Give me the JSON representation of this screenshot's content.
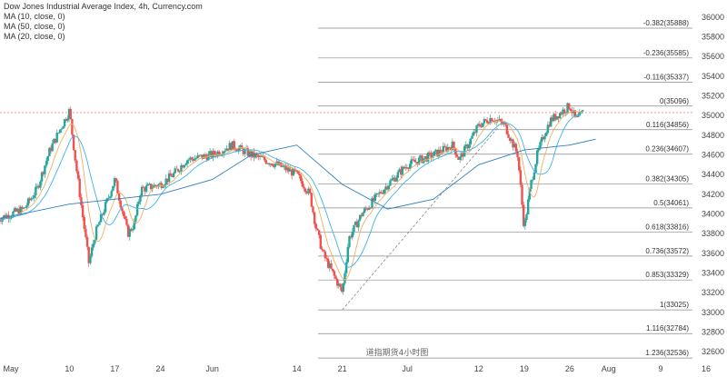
{
  "legend": {
    "title": "Dow Jones Industrial Average Index, 4h, Currency.com",
    "ma10": "MA (10, close, 0)",
    "ma50": "MA (50, close, 0)",
    "ma20": "MA (20, close, 0)"
  },
  "watermark": "道指期货4小时图",
  "colors": {
    "up": "#26a69a",
    "down": "#ef5350",
    "ma10": "#f0b060",
    "ma20": "#3cb4e6",
    "ma50": "#2f7fc0",
    "fib": "#888888",
    "trend": "#888888",
    "priceline": "#ef5350"
  },
  "chart_data": {
    "type": "candlestick",
    "ylim": [
      32500,
      36100
    ],
    "y_ticks": [
      32600,
      32800,
      33000,
      33200,
      33400,
      33600,
      33800,
      34000,
      34200,
      34400,
      34600,
      34800,
      35000,
      35200,
      35400,
      35600,
      35800,
      36000
    ],
    "x_ticks": [
      "May",
      "10",
      "17",
      "24",
      "Jun",
      "14",
      "21",
      "Jul",
      "12",
      "19",
      "26",
      "Aug",
      "9",
      "16"
    ],
    "current_price": 35030,
    "fibonacci": [
      {
        "label": "-0.382(35888)",
        "value": 35888
      },
      {
        "label": "-0.236(35585)",
        "value": 35585
      },
      {
        "label": "-0.116(35337)",
        "value": 35337
      },
      {
        "label": "0(35096)",
        "value": 35096
      },
      {
        "label": "0.116(34856)",
        "value": 34856
      },
      {
        "label": "0.236(34607)",
        "value": 34607
      },
      {
        "label": "0.382(34305)",
        "value": 34305
      },
      {
        "label": "0.5(34061)",
        "value": 34061
      },
      {
        "label": "0.618(33816)",
        "value": 33816
      },
      {
        "label": "0.736(33572)",
        "value": 33572
      },
      {
        "label": "0.853(33329)",
        "value": 33329
      },
      {
        "label": "1(33025)",
        "value": 33025
      },
      {
        "label": "1.116(32784)",
        "value": 32784
      },
      {
        "label": "1.236(32536)",
        "value": 32536
      }
    ],
    "trendline": {
      "from": {
        "date": "Jun 21",
        "value": 33025
      },
      "to": {
        "date": "Jul 15",
        "value": 34880
      }
    },
    "price_path": [
      {
        "date": "Apr 30",
        "value": 33950
      },
      {
        "date": "May 3",
        "value": 34050
      },
      {
        "date": "May 5",
        "value": 34250
      },
      {
        "date": "May 7",
        "value": 34650
      },
      {
        "date": "May 10",
        "value": 35050
      },
      {
        "date": "May 11",
        "value": 34500
      },
      {
        "date": "May 12",
        "value": 34000
      },
      {
        "date": "May 13",
        "value": 33500
      },
      {
        "date": "May 14",
        "value": 33800
      },
      {
        "date": "May 17",
        "value": 34350
      },
      {
        "date": "May 19",
        "value": 33800
      },
      {
        "date": "May 20",
        "value": 33900
      },
      {
        "date": "May 21",
        "value": 34250
      },
      {
        "date": "May 24",
        "value": 34300
      },
      {
        "date": "May 26",
        "value": 34400
      },
      {
        "date": "May 28",
        "value": 34550
      },
      {
        "date": "Jun 1",
        "value": 34600
      },
      {
        "date": "Jun 4",
        "value": 34700
      },
      {
        "date": "Jun 7",
        "value": 34600
      },
      {
        "date": "Jun 9",
        "value": 34550
      },
      {
        "date": "Jun 11",
        "value": 34500
      },
      {
        "date": "Jun 14",
        "value": 34400
      },
      {
        "date": "Jun 16",
        "value": 34200
      },
      {
        "date": "Jun 17",
        "value": 33850
      },
      {
        "date": "Jun 18",
        "value": 33600
      },
      {
        "date": "Jun 21",
        "value": 33200
      },
      {
        "date": "Jun 22",
        "value": 33750
      },
      {
        "date": "Jun 24",
        "value": 34000
      },
      {
        "date": "Jun 28",
        "value": 34300
      },
      {
        "date": "Jul 1",
        "value": 34500
      },
      {
        "date": "Jul 5",
        "value": 34600
      },
      {
        "date": "Jul 8",
        "value": 34700
      },
      {
        "date": "Jul 9",
        "value": 34550
      },
      {
        "date": "Jul 12",
        "value": 34900
      },
      {
        "date": "Jul 14",
        "value": 34980
      },
      {
        "date": "Jul 16",
        "value": 34900
      },
      {
        "date": "Jul 18",
        "value": 34600
      },
      {
        "date": "Jul 19",
        "value": 33850
      },
      {
        "date": "Jul 20",
        "value": 34300
      },
      {
        "date": "Jul 21",
        "value": 34600
      },
      {
        "date": "Jul 22",
        "value": 34800
      },
      {
        "date": "Jul 23",
        "value": 34950
      },
      {
        "date": "Jul 26",
        "value": 35100
      },
      {
        "date": "Jul 27",
        "value": 34950
      },
      {
        "date": "Jul 28",
        "value": 35030
      }
    ],
    "ma50_path": [
      {
        "date": "Apr 30",
        "value": 33950
      },
      {
        "date": "May 10",
        "value": 34100
      },
      {
        "date": "May 17",
        "value": 34150
      },
      {
        "date": "May 24",
        "value": 34200
      },
      {
        "date": "Jun 1",
        "value": 34350
      },
      {
        "date": "Jun 7",
        "value": 34600
      },
      {
        "date": "Jun 14",
        "value": 34700
      },
      {
        "date": "Jun 21",
        "value": 34300
      },
      {
        "date": "Jun 28",
        "value": 34050
      },
      {
        "date": "Jul 5",
        "value": 34150
      },
      {
        "date": "Jul 12",
        "value": 34500
      },
      {
        "date": "Jul 19",
        "value": 34650
      },
      {
        "date": "Jul 26",
        "value": 34700
      },
      {
        "date": "Jul 30",
        "value": 34760
      }
    ]
  }
}
